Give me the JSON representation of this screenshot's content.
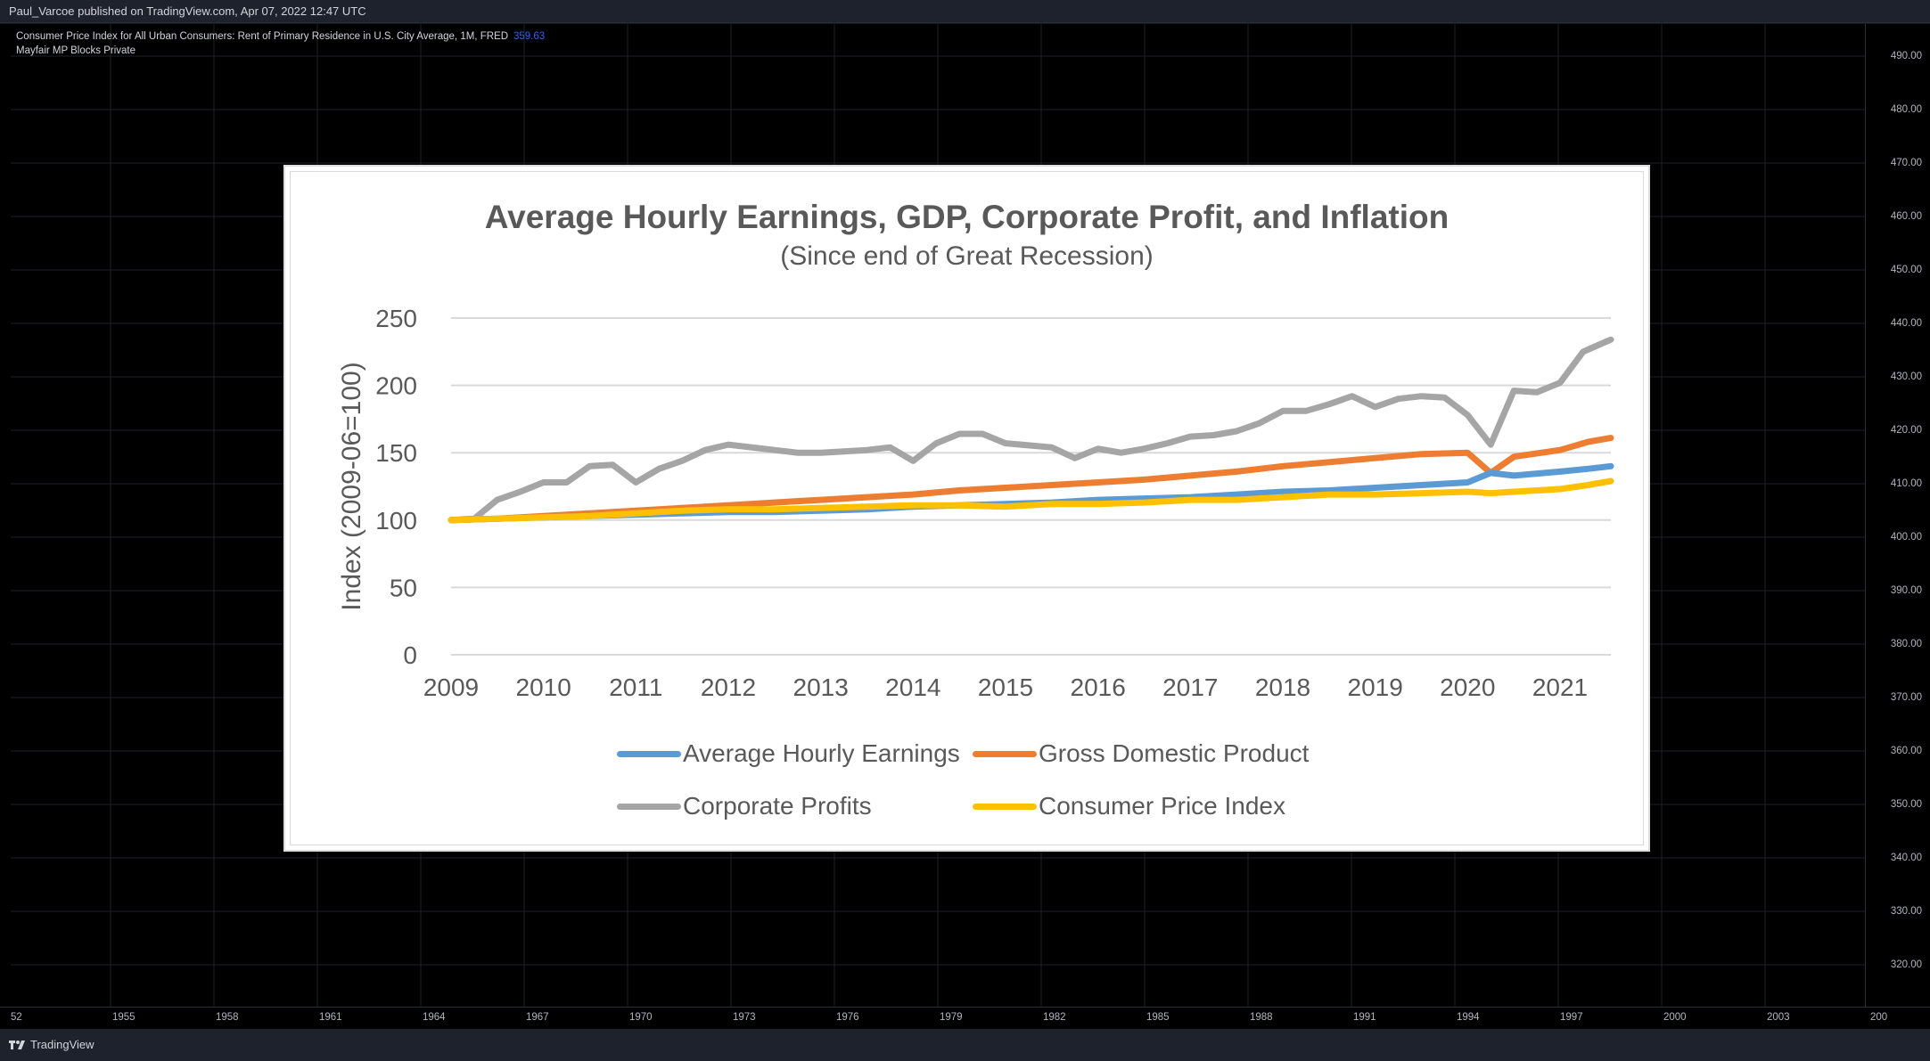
{
  "topbar": {
    "text": "Paul_Varcoe published on TradingView.com, Apr 07, 2022 12:47 UTC"
  },
  "legend": {
    "series_title": "Consumer Price Index for All Urban Consumers: Rent of Primary Residence in U.S. City Average, 1M, FRED",
    "series_value": "359.63",
    "indicator": "Mayfair MP Blocks Private"
  },
  "price_axis": [
    "490.00",
    "480.00",
    "470.00",
    "460.00",
    "450.00",
    "440.00",
    "430.00",
    "420.00",
    "410.00",
    "400.00",
    "390.00",
    "380.00",
    "370.00",
    "360.00",
    "350.00",
    "340.00",
    "330.00",
    "320.00"
  ],
  "time_axis": [
    "52",
    "1955",
    "1958",
    "1961",
    "1964",
    "1967",
    "1970",
    "1973",
    "1976",
    "1979",
    "1982",
    "1985",
    "1988",
    "1991",
    "1994",
    "1997",
    "2000",
    "2003",
    "200"
  ],
  "bottombar": {
    "brand": "TradingView",
    "logo_icon": "tradingview-logo-icon"
  },
  "colors": {
    "aheColor": "#5b9bd5",
    "gdpColor": "#ed7d31",
    "profitColor": "#a5a5a5",
    "cpiColor": "#ffc000"
  },
  "chart_data": {
    "type": "line",
    "title": "Average Hourly Earnings, GDP, Corporate Profit, and Inflation",
    "subtitle": "(Since end of Great Recession)",
    "ylabel": "Index (2009-06=100)",
    "xlabel": "",
    "ylim": [
      0,
      250
    ],
    "yticks": [
      0,
      50,
      100,
      150,
      200,
      250
    ],
    "xlim": [
      2009,
      2021.55
    ],
    "xticks": [
      "2009",
      "2010",
      "2011",
      "2012",
      "2013",
      "2014",
      "2015",
      "2016",
      "2017",
      "2018",
      "2019",
      "2020",
      "2021"
    ],
    "grid": true,
    "legend_position": "bottom",
    "series": [
      {
        "name": "Average Hourly Earnings",
        "x": [
          2009.0,
          2009.5,
          2010.0,
          2010.5,
          2011.0,
          2011.5,
          2012.0,
          2012.5,
          2013.0,
          2013.5,
          2014.0,
          2014.5,
          2015.0,
          2015.5,
          2016.0,
          2016.5,
          2017.0,
          2017.5,
          2018.0,
          2018.5,
          2019.0,
          2019.5,
          2020.0,
          2020.25,
          2020.5,
          2021.0,
          2021.3,
          2021.55
        ],
        "values": [
          100,
          101,
          102,
          103,
          104,
          105,
          106,
          106,
          107,
          108,
          110,
          111,
          112,
          113,
          115,
          116,
          117,
          119,
          121,
          122,
          124,
          126,
          128,
          135,
          133,
          136,
          138,
          140
        ]
      },
      {
        "name": "Gross Domestic Product",
        "x": [
          2009.0,
          2009.5,
          2010.0,
          2010.5,
          2011.0,
          2011.5,
          2012.0,
          2012.5,
          2013.0,
          2013.5,
          2014.0,
          2014.5,
          2015.0,
          2015.5,
          2016.0,
          2016.5,
          2017.0,
          2017.5,
          2018.0,
          2018.5,
          2019.0,
          2019.5,
          2020.0,
          2020.25,
          2020.5,
          2021.0,
          2021.3,
          2021.55
        ],
        "values": [
          100,
          101,
          103,
          105,
          107,
          109,
          111,
          113,
          115,
          117,
          119,
          122,
          124,
          126,
          128,
          130,
          133,
          136,
          140,
          143,
          146,
          149,
          150,
          135,
          147,
          152,
          158,
          161
        ]
      },
      {
        "name": "Corporate Profits",
        "x": [
          2009.0,
          2009.25,
          2009.5,
          2009.75,
          2010.0,
          2010.25,
          2010.5,
          2010.75,
          2011.0,
          2011.25,
          2011.5,
          2011.75,
          2012.0,
          2012.5,
          2012.75,
          2013.0,
          2013.5,
          2013.75,
          2014.0,
          2014.25,
          2014.5,
          2014.75,
          2015.0,
          2015.5,
          2015.75,
          2016.0,
          2016.25,
          2016.5,
          2016.75,
          2017.0,
          2017.25,
          2017.5,
          2017.75,
          2018.0,
          2018.25,
          2018.5,
          2018.75,
          2019.0,
          2019.25,
          2019.5,
          2019.75,
          2020.0,
          2020.25,
          2020.5,
          2020.75,
          2021.0,
          2021.25,
          2021.55
        ],
        "values": [
          100,
          101,
          115,
          121,
          128,
          128,
          140,
          141,
          128,
          138,
          144,
          152,
          156,
          152,
          150,
          150,
          152,
          154,
          144,
          157,
          164,
          164,
          157,
          154,
          146,
          153,
          150,
          153,
          157,
          162,
          163,
          166,
          172,
          181,
          181,
          186,
          192,
          184,
          190,
          192,
          191,
          178,
          156,
          196,
          195,
          202,
          225,
          234
        ]
      },
      {
        "name": "Consumer Price Index",
        "x": [
          2009.0,
          2009.5,
          2010.0,
          2010.5,
          2011.0,
          2011.5,
          2012.0,
          2012.5,
          2013.0,
          2013.5,
          2014.0,
          2014.5,
          2015.0,
          2015.5,
          2016.0,
          2016.5,
          2017.0,
          2017.5,
          2018.0,
          2018.5,
          2019.0,
          2019.5,
          2020.0,
          2020.25,
          2020.5,
          2021.0,
          2021.3,
          2021.55
        ],
        "values": [
          100,
          101,
          102,
          103,
          105,
          107,
          108,
          108,
          109,
          110,
          111,
          111,
          110,
          112,
          112,
          113,
          115,
          115,
          117,
          119,
          119,
          120,
          121,
          120,
          121,
          123,
          126,
          129
        ]
      }
    ]
  }
}
